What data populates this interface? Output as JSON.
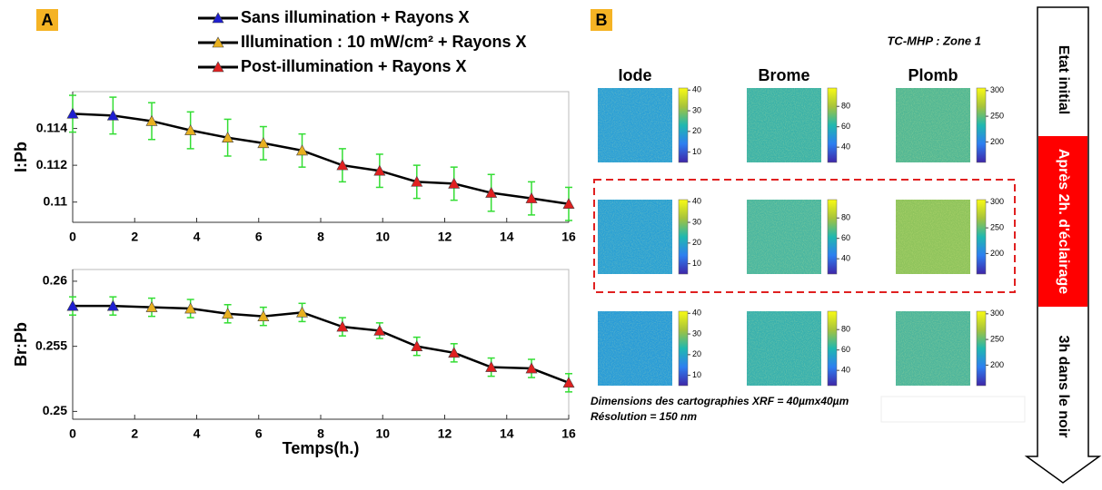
{
  "panel_labels": [
    "A",
    "B"
  ],
  "chart_data": [
    {
      "type": "line",
      "ylabel": "I:Pb",
      "xlim": [
        0,
        16
      ],
      "xticks": [
        0,
        2,
        4,
        6,
        8,
        10,
        12,
        14,
        16
      ],
      "ylim": [
        0.1089,
        0.116
      ],
      "yticks": [
        0.11,
        0.112,
        0.114
      ],
      "line_color": "#000000",
      "error_color": "#33dd33",
      "series": [
        {
          "name": "Sans illumination + Rayons X",
          "color": "#1f1fd0",
          "x": [
            0,
            1.3
          ],
          "values": [
            0.1148,
            0.1147
          ],
          "errors": [
            0.001,
            0.001
          ]
        },
        {
          "name": "Illumination :  10 mW/cm² + Rayons X",
          "color": "#e8b020",
          "x": [
            2.55,
            3.8,
            5,
            6.15,
            7.4
          ],
          "values": [
            0.1144,
            0.1139,
            0.1135,
            0.1132,
            0.1128
          ],
          "errors": [
            0.001,
            0.001,
            0.001,
            0.0009,
            0.0009
          ]
        },
        {
          "name": "Post-illumination + Rayons X",
          "color": "#e02020",
          "x": [
            8.7,
            9.9,
            11.1,
            12.3,
            13.5,
            14.8,
            16
          ],
          "values": [
            0.112,
            0.1117,
            0.1111,
            0.111,
            0.1105,
            0.1102,
            0.1099
          ],
          "errors": [
            0.0009,
            0.0009,
            0.0009,
            0.0009,
            0.001,
            0.0009,
            0.0009
          ]
        }
      ]
    },
    {
      "type": "line",
      "xlabel": "Temps(h.)",
      "ylabel": "Br:Pb",
      "xlim": [
        0,
        16
      ],
      "xticks": [
        0,
        2,
        4,
        6,
        8,
        10,
        12,
        14,
        16
      ],
      "ylim": [
        0.2494,
        0.2609
      ],
      "yticks": [
        0.25,
        0.255,
        0.26
      ],
      "line_color": "#000000",
      "error_color": "#33dd33",
      "series": [
        {
          "color": "#1f1fd0",
          "x": [
            0,
            1.3
          ],
          "values": [
            0.2581,
            0.2581
          ],
          "errors": [
            0.0007,
            0.0007
          ]
        },
        {
          "color": "#e8b020",
          "x": [
            2.55,
            3.8,
            5,
            6.15,
            7.4
          ],
          "values": [
            0.258,
            0.2579,
            0.2575,
            0.2573,
            0.2576
          ],
          "errors": [
            0.0007,
            0.0007,
            0.0007,
            0.0007,
            0.0007
          ]
        },
        {
          "color": "#e02020",
          "x": [
            8.7,
            9.9,
            11.1,
            12.3,
            13.5,
            14.8,
            16
          ],
          "values": [
            0.2565,
            0.2562,
            0.255,
            0.2545,
            0.2534,
            0.2533,
            0.2522
          ],
          "errors": [
            0.0007,
            0.0006,
            0.0007,
            0.0007,
            0.0007,
            0.0007,
            0.0007
          ]
        }
      ]
    }
  ],
  "maps": {
    "zone": "TC-MHP : Zone 1",
    "columns": [
      {
        "title": "Iode",
        "clim": [
          5,
          41
        ],
        "ticks": [
          10,
          20,
          30,
          40
        ]
      },
      {
        "title": "Brome",
        "clim": [
          25,
          98
        ],
        "ticks": [
          40,
          60,
          80
        ]
      },
      {
        "title": "Plomb",
        "clim": [
          160,
          305
        ],
        "ticks": [
          200,
          250,
          300
        ]
      }
    ],
    "caption": [
      "Dimensions des cartographies XRF = 40µmx40µm",
      "Résolution = 150 nm"
    ]
  },
  "arrow": {
    "stages": [
      "Etat initial",
      "Après 2h. d'éclairage",
      "3h dans le noir"
    ]
  }
}
